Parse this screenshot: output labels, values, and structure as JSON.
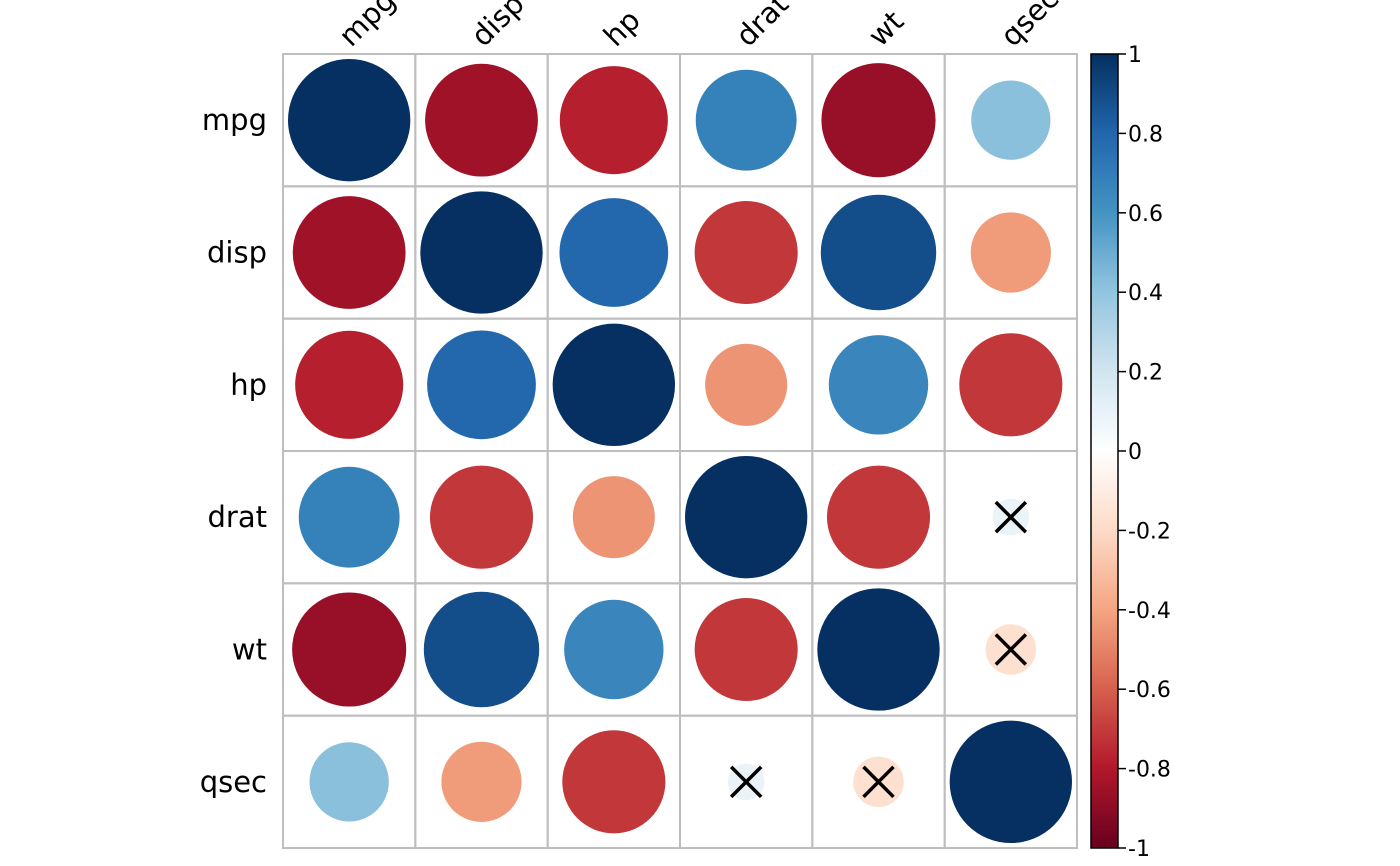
{
  "chart_data": {
    "type": "heatmap",
    "variables": [
      "mpg",
      "disp",
      "hp",
      "drat",
      "wt",
      "qsec"
    ],
    "correlation_matrix": [
      [
        1.0,
        -0.85,
        -0.78,
        0.68,
        -0.87,
        0.42
      ],
      [
        -0.85,
        1.0,
        0.79,
        -0.71,
        0.89,
        -0.43
      ],
      [
        -0.78,
        0.79,
        1.0,
        -0.45,
        0.66,
        -0.71
      ],
      [
        0.68,
        -0.71,
        -0.45,
        1.0,
        -0.71,
        0.09
      ],
      [
        -0.87,
        0.89,
        0.66,
        -0.71,
        1.0,
        -0.17
      ],
      [
        0.42,
        -0.43,
        -0.71,
        0.09,
        -0.17,
        1.0
      ]
    ],
    "insignificant_marks": [
      [
        3,
        5
      ],
      [
        4,
        5
      ],
      [
        5,
        3
      ],
      [
        5,
        4
      ]
    ],
    "colorbar": {
      "range": [
        -1,
        1
      ],
      "ticks": [
        1,
        0.8,
        0.6,
        0.4,
        0.2,
        0,
        -0.2,
        -0.4,
        -0.6,
        -0.8,
        -1
      ],
      "tick_labels": [
        "1",
        "0.8",
        "0.6",
        "0.4",
        "0.2",
        "0",
        "-0.2",
        "-0.4",
        "-0.6",
        "-0.8",
        "-1"
      ]
    },
    "palette": {
      "negative_end": "#67001F",
      "positive_end": "#053061",
      "stops": [
        "#67001F",
        "#B2182B",
        "#D6604D",
        "#F4A582",
        "#FDDBC7",
        "#FFFFFF",
        "#D1E5F0",
        "#92C5DE",
        "#4393C3",
        "#2166AC",
        "#053061"
      ]
    },
    "grid_color": "#BEBEBE",
    "mark_color": "#000000"
  }
}
